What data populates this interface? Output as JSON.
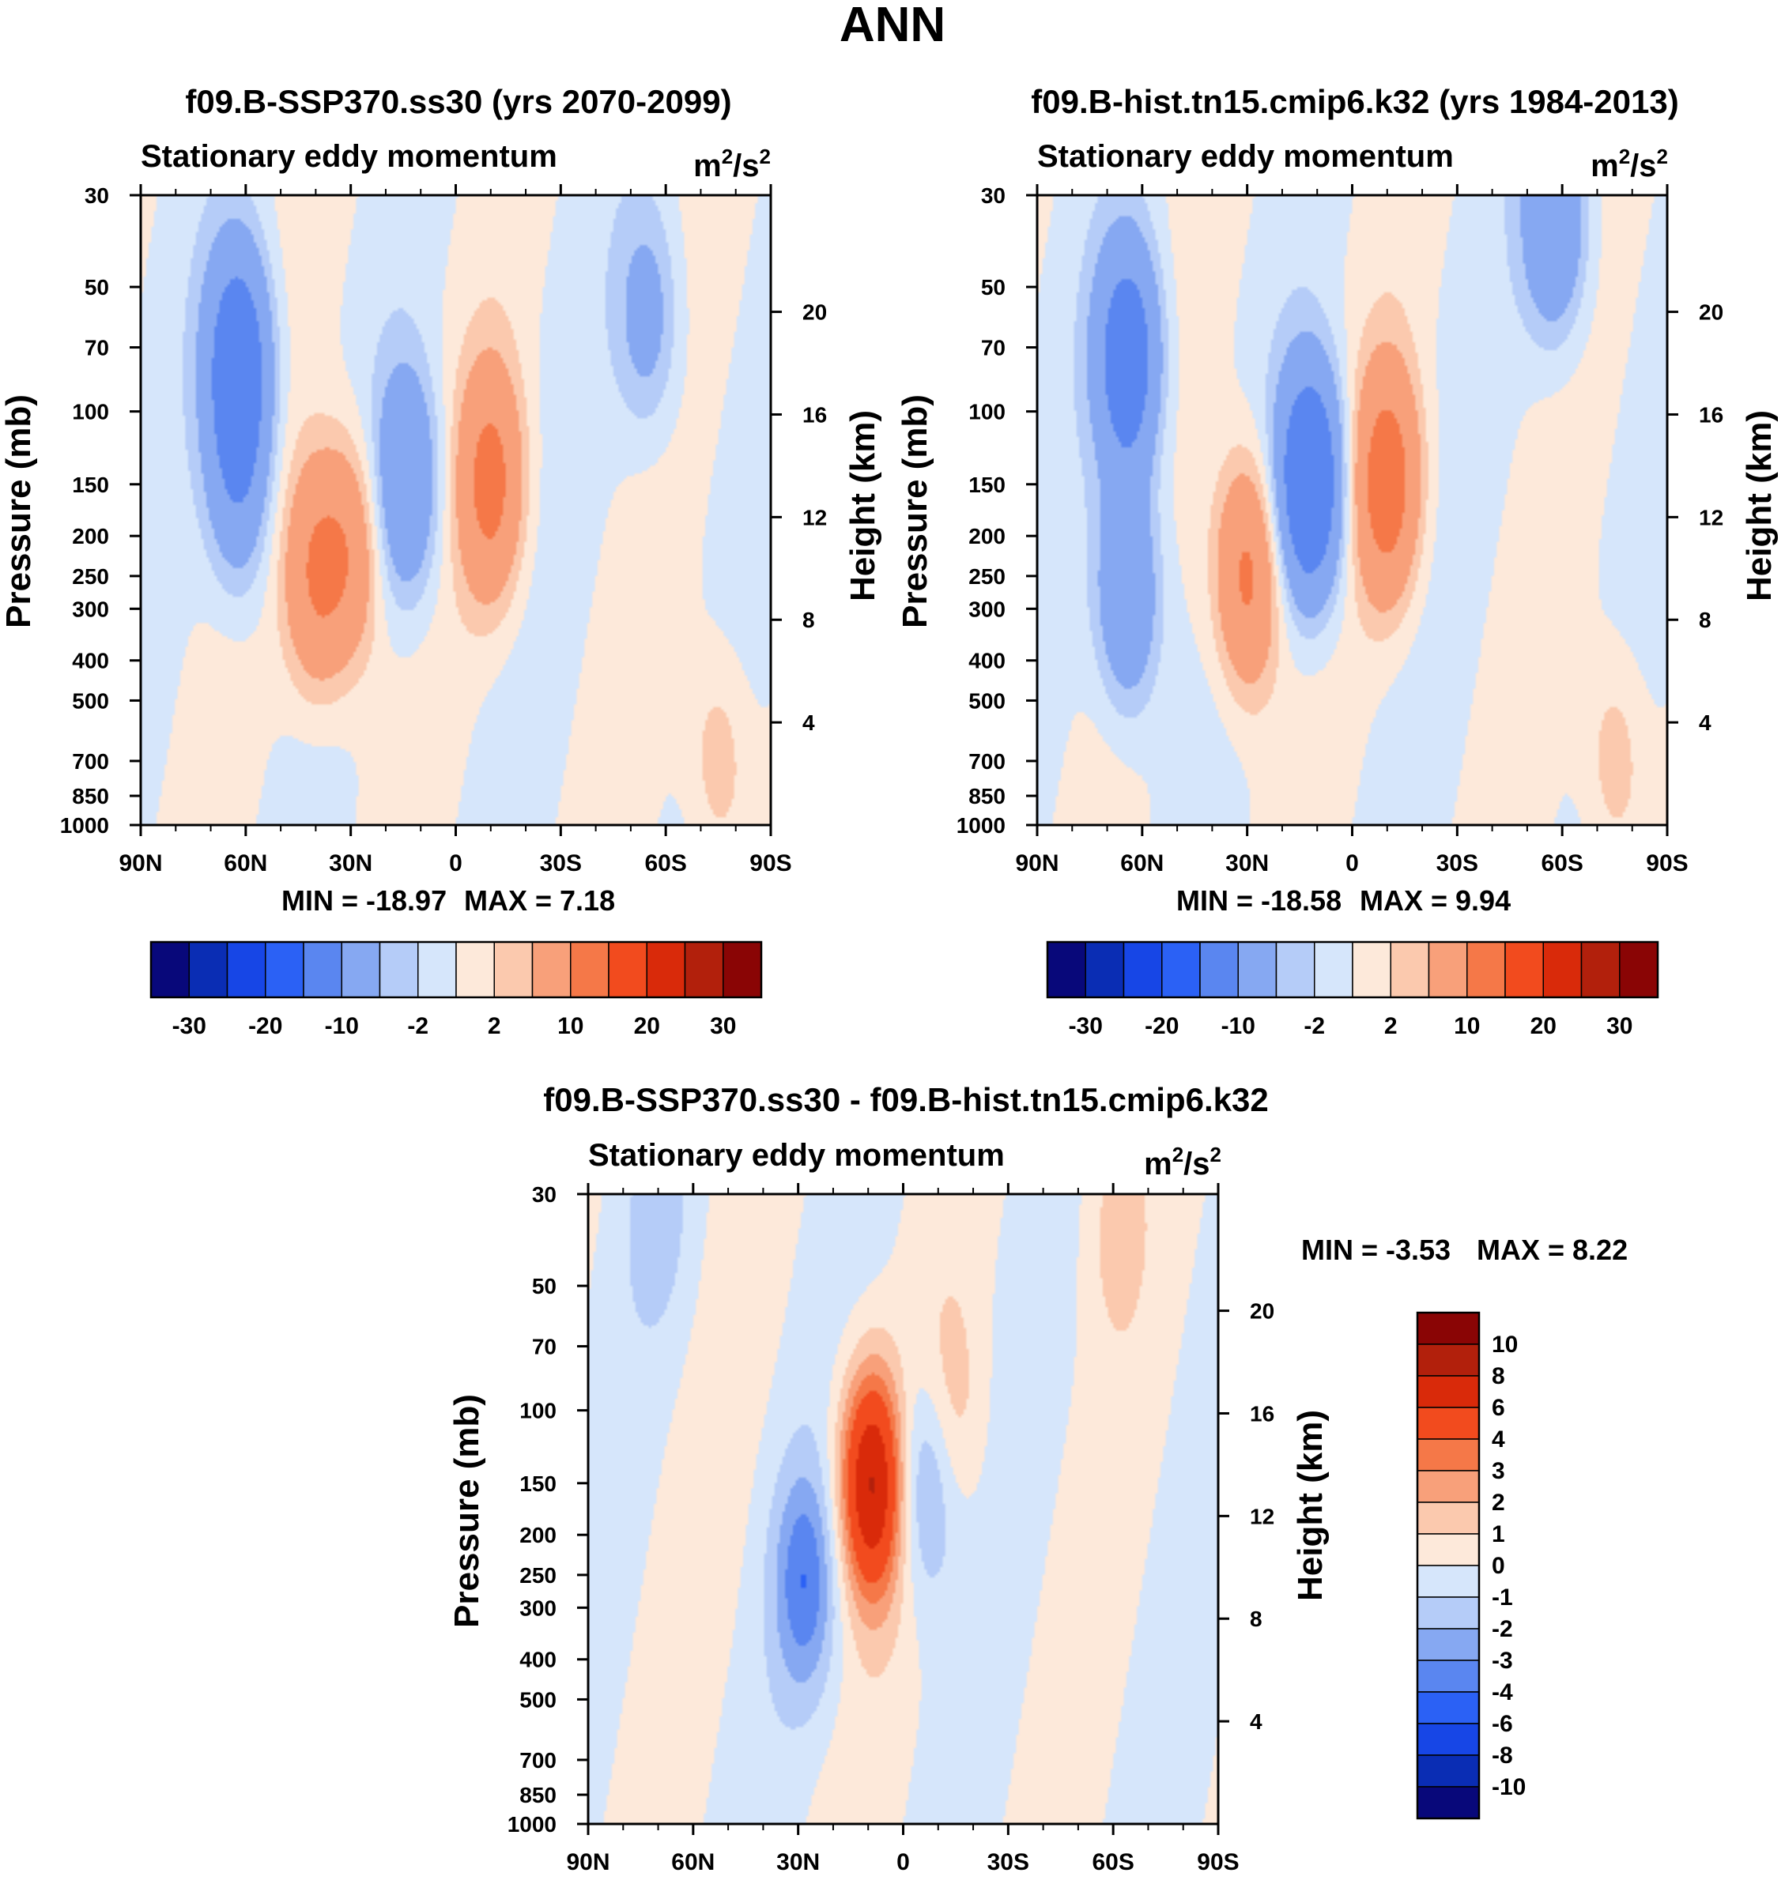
{
  "figure_title": "ANN",
  "colors": {
    "main_scale": [
      "#08087a",
      "#0a2db4",
      "#1746e6",
      "#2b61f5",
      "#5a86f0",
      "#86a8f2",
      "#b5ccf8",
      "#d6e6fb",
      "#fde9da",
      "#fbc9ae",
      "#f8a07a",
      "#f57848",
      "#f24b1e",
      "#d92a0a",
      "#b2200c",
      "#8a0505"
    ],
    "diff_scale": [
      "#08087a",
      "#0a2db4",
      "#1746e6",
      "#2b61f5",
      "#5a86f0",
      "#86a8f2",
      "#b5ccf8",
      "#d6e6fb",
      "#fde9da",
      "#fbc9ae",
      "#f8a07a",
      "#f57848",
      "#f24b1e",
      "#d92a0a",
      "#b2200c",
      "#8a0505"
    ]
  },
  "chart_data": [
    {
      "id": "p1",
      "type": "contour",
      "title": "f09.B-SSP370.ss30 (yrs 2070-2099)",
      "left_label": "Stationary eddy momentum",
      "units_base": "m",
      "units_exp1": "2",
      "units_mid": "/s",
      "units_exp2": "2",
      "xlabel": "",
      "ylabel": "Pressure (mb)",
      "y2label": "Height (km)",
      "x_ticks": [
        "90N",
        "60N",
        "30N",
        "0",
        "30S",
        "60S",
        "90S"
      ],
      "x_values": [
        90,
        60,
        30,
        0,
        -30,
        -60,
        -90
      ],
      "y_ticks": [
        30,
        50,
        70,
        100,
        150,
        200,
        250,
        300,
        400,
        500,
        700,
        850,
        1000
      ],
      "y2_ticks": [
        4,
        8,
        12,
        16,
        20
      ],
      "ylim": [
        1000,
        30
      ],
      "min_text": "MIN = -18.97",
      "max_text": "MAX =   7.18",
      "min": -18.97,
      "max": 7.18,
      "colorbar_labels": [
        "-30",
        "-20",
        "-10",
        "-2",
        "2",
        "10",
        "20",
        "30"
      ],
      "contour_levels": [
        -30,
        -25,
        -20,
        -15,
        -10,
        -5,
        -2,
        -1,
        0,
        1,
        2,
        5,
        10,
        15,
        20,
        25,
        30
      ],
      "features": [
        {
          "lat": 62,
          "p": 75,
          "value": -8
        },
        {
          "lat": 62,
          "p": 150,
          "value": -4
        },
        {
          "lat": 40,
          "p": 250,
          "value": 5
        },
        {
          "lat": 30,
          "p": 220,
          "value": 4
        },
        {
          "lat": 14,
          "p": 150,
          "value": -5
        },
        {
          "lat": -10,
          "p": 150,
          "value": 6
        },
        {
          "lat": -55,
          "p": 60,
          "value": -3
        },
        {
          "lat": -75,
          "p": 700,
          "value": 2
        }
      ]
    },
    {
      "id": "p2",
      "type": "contour",
      "title": "f09.B-hist.tn15.cmip6.k32 (yrs 1984-2013)",
      "left_label": "Stationary eddy momentum",
      "units_base": "m",
      "units_exp1": "2",
      "units_mid": "/s",
      "units_exp2": "2",
      "xlabel": "",
      "ylabel": "Pressure (mb)",
      "y2label": "Height (km)",
      "x_ticks": [
        "90N",
        "60N",
        "30N",
        "0",
        "30S",
        "60S",
        "90S"
      ],
      "x_values": [
        90,
        60,
        30,
        0,
        -30,
        -60,
        -90
      ],
      "y_ticks": [
        30,
        50,
        70,
        100,
        150,
        200,
        250,
        300,
        400,
        500,
        700,
        850,
        1000
      ],
      "y2_ticks": [
        4,
        8,
        12,
        16,
        20
      ],
      "ylim": [
        1000,
        30
      ],
      "min_text": "MIN = -18.58",
      "max_text": "MAX =   9.94",
      "min": -18.58,
      "max": 9.94,
      "colorbar_labels": [
        "-30",
        "-20",
        "-10",
        "-2",
        "2",
        "10",
        "20",
        "30"
      ],
      "contour_levels": [
        -30,
        -25,
        -20,
        -15,
        -10,
        -5,
        -2,
        -1,
        0,
        1,
        2,
        5,
        10,
        15,
        20,
        25,
        30
      ],
      "features": [
        {
          "lat": 64,
          "p": 75,
          "value": -8
        },
        {
          "lat": 64,
          "p": 280,
          "value": -5
        },
        {
          "lat": 30,
          "p": 250,
          "value": 6
        },
        {
          "lat": 12,
          "p": 150,
          "value": -10
        },
        {
          "lat": -10,
          "p": 150,
          "value": 7
        },
        {
          "lat": -58,
          "p": 35,
          "value": -5
        },
        {
          "lat": -75,
          "p": 700,
          "value": 2
        }
      ]
    },
    {
      "id": "p3",
      "type": "contour",
      "title": "f09.B-SSP370.ss30 - f09.B-hist.tn15.cmip6.k32",
      "left_label": "Stationary eddy momentum",
      "units_base": "m",
      "units_exp1": "2",
      "units_mid": "/s",
      "units_exp2": "2",
      "xlabel": "",
      "ylabel": "Pressure (mb)",
      "y2label": "Height (km)",
      "x_ticks": [
        "90N",
        "60N",
        "30N",
        "0",
        "30S",
        "60S",
        "90S"
      ],
      "x_values": [
        90,
        60,
        30,
        0,
        -30,
        -60,
        -90
      ],
      "y_ticks": [
        30,
        50,
        70,
        100,
        150,
        200,
        250,
        300,
        400,
        500,
        700,
        850,
        1000
      ],
      "y2_ticks": [
        4,
        8,
        12,
        16,
        20
      ],
      "ylim": [
        1000,
        30
      ],
      "min_text": "MIN =  -3.53",
      "max_text": "MAX =   8.22",
      "min": -3.53,
      "max": 8.22,
      "colorbar_labels": [
        "10",
        "8",
        "6",
        "4",
        "3",
        "2",
        "1",
        "0",
        "-1",
        "-2",
        "-3",
        "-4",
        "-6",
        "-8",
        "-10"
      ],
      "contour_levels": [
        -10,
        -8,
        -6,
        -4,
        -3,
        -2,
        -1,
        0,
        1,
        2,
        3,
        4,
        6,
        8,
        10
      ],
      "features": [
        {
          "lat": 28,
          "p": 260,
          "value": -3.5
        },
        {
          "lat": 9,
          "p": 150,
          "value": 8
        },
        {
          "lat": -6,
          "p": 150,
          "value": -3
        },
        {
          "lat": -14,
          "p": 100,
          "value": 1.5
        },
        {
          "lat": -60,
          "p": 35,
          "value": 1.2
        },
        {
          "lat": 70,
          "p": 35,
          "value": -1.2
        }
      ]
    }
  ]
}
